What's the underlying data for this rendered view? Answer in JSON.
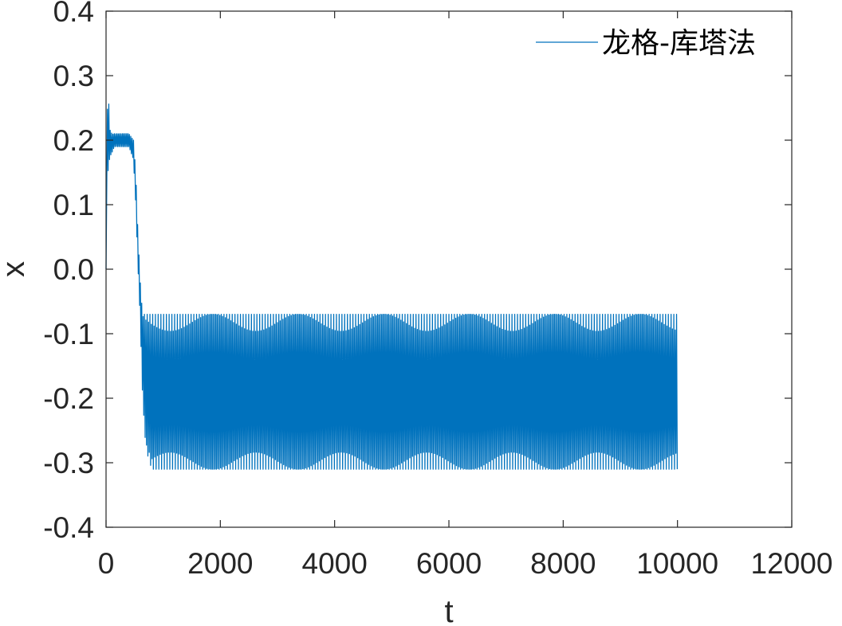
{
  "chart_data": {
    "type": "line",
    "title": "",
    "xlabel": "t",
    "ylabel": "x",
    "xlim": [
      0,
      12000
    ],
    "ylim": [
      -0.4,
      0.4
    ],
    "xticks": [
      0,
      2000,
      4000,
      6000,
      8000,
      10000,
      12000
    ],
    "xtick_labels": [
      "0",
      "2000",
      "4000",
      "6000",
      "8000",
      "10000",
      "12000"
    ],
    "yticks": [
      0.4,
      0.3,
      0.2,
      0.1,
      0.0,
      -0.1,
      -0.2,
      -0.3,
      -0.4
    ],
    "ytick_labels": [
      "0.4",
      "0.3",
      "0.2",
      "0.1",
      "0.0",
      "-0.1",
      "-0.2",
      "-0.3",
      "-0.4"
    ],
    "grid": false,
    "legend_position": "top-right",
    "series": [
      {
        "name": "龙格-库塔法",
        "color": "#0072BD",
        "description_points": {
          "t": [
            0,
            30,
            60,
            100,
            150,
            200,
            300,
            400,
            480,
            520,
            560,
            600,
            620,
            650,
            700,
            800,
            1000,
            10000
          ],
          "x_upper": [
            0.0,
            0.31,
            0.22,
            0.21,
            0.21,
            0.21,
            0.21,
            0.21,
            0.2,
            0.15,
            0.05,
            -0.02,
            -0.05,
            -0.07,
            -0.07,
            -0.07,
            -0.07,
            -0.07
          ],
          "x_lower": [
            0.0,
            0.14,
            0.17,
            0.18,
            0.19,
            0.19,
            0.19,
            0.19,
            0.17,
            0.1,
            0.0,
            -0.08,
            -0.15,
            -0.22,
            -0.28,
            -0.31,
            -0.31,
            -0.31
          ]
        }
      }
    ]
  }
}
